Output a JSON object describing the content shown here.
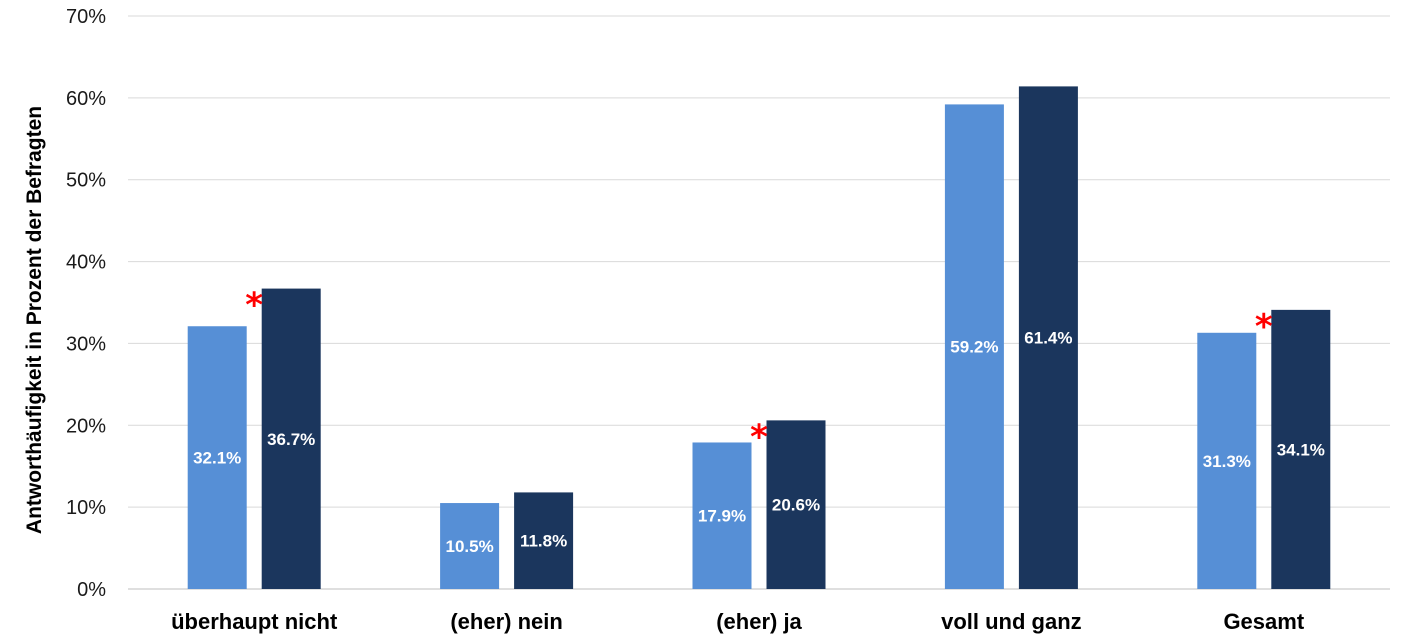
{
  "chart_data": {
    "type": "bar",
    "title": "",
    "ylabel": "Antworthäufigkeit in Prozent der Befragten",
    "xlabel": "",
    "ylim": [
      0,
      70
    ],
    "yticks": [
      0,
      10,
      20,
      30,
      40,
      50,
      60,
      70
    ],
    "ytick_labels": [
      "0%",
      "10%",
      "20%",
      "30%",
      "40%",
      "50%",
      "60%",
      "70%"
    ],
    "grid": true,
    "categories": [
      "überhaupt nicht",
      "(eher) nein",
      "(eher) ja",
      "voll und ganz",
      "Gesamt"
    ],
    "series": [
      {
        "values": [
          32.1,
          10.5,
          17.9,
          59.2,
          31.3
        ],
        "labels": [
          "32.1%",
          "10.5%",
          "17.9%",
          "59.2%",
          "31.3%"
        ],
        "color": "#568fd6"
      },
      {
        "values": [
          36.7,
          11.8,
          20.6,
          61.4,
          34.1
        ],
        "labels": [
          "36.7%",
          "11.8%",
          "20.6%",
          "61.4%",
          "34.1%"
        ],
        "color": "#1b365d"
      }
    ],
    "significance_marker": "*",
    "significance_categories": [
      "überhaupt nicht",
      "(eher) ja",
      "Gesamt"
    ],
    "significance_color": "#ff0000"
  }
}
